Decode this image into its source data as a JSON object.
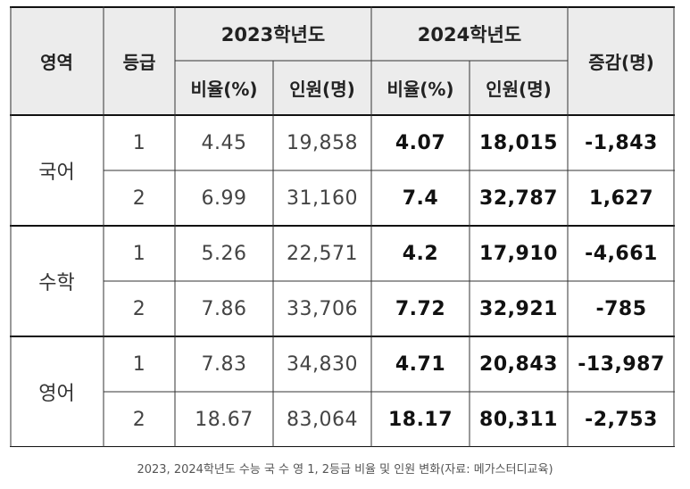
{
  "headers": {
    "area": "영역",
    "grade": "등급",
    "year2023": "2023학년도",
    "year2024": "2024학년도",
    "change": "증감(명)",
    "ratio": "비율(%)",
    "people": "인원(명)"
  },
  "groups": [
    {
      "subject": "국어",
      "rows": [
        {
          "grade": "1",
          "r23": "4.45",
          "p23": "19,858",
          "r24": "4.07",
          "p24": "18,015",
          "diff": "-1,843"
        },
        {
          "grade": "2",
          "r23": "6.99",
          "p23": "31,160",
          "r24": "7.4",
          "p24": "32,787",
          "diff": "1,627"
        }
      ]
    },
    {
      "subject": "수학",
      "rows": [
        {
          "grade": "1",
          "r23": "5.26",
          "p23": "22,571",
          "r24": "4.2",
          "p24": "17,910",
          "diff": "-4,661"
        },
        {
          "grade": "2",
          "r23": "7.86",
          "p23": "33,706",
          "r24": "7.72",
          "p24": "32,921",
          "diff": "-785"
        }
      ]
    },
    {
      "subject": "영어",
      "rows": [
        {
          "grade": "1",
          "r23": "7.83",
          "p23": "34,830",
          "r24": "4.71",
          "p24": "20,843",
          "diff": "-13,987"
        },
        {
          "grade": "2",
          "r23": "18.67",
          "p23": "83,064",
          "r24": "18.17",
          "p24": "80,311",
          "diff": "-2,753"
        }
      ]
    }
  ],
  "caption": "2023, 2024학년도 수능 국 수 영 1, 2등급 비율 및 인원 변화(자료: 메가스터디교육)",
  "colors": {
    "header_bg": "#ececec",
    "line": "#333333",
    "thick_line": "#111111"
  }
}
